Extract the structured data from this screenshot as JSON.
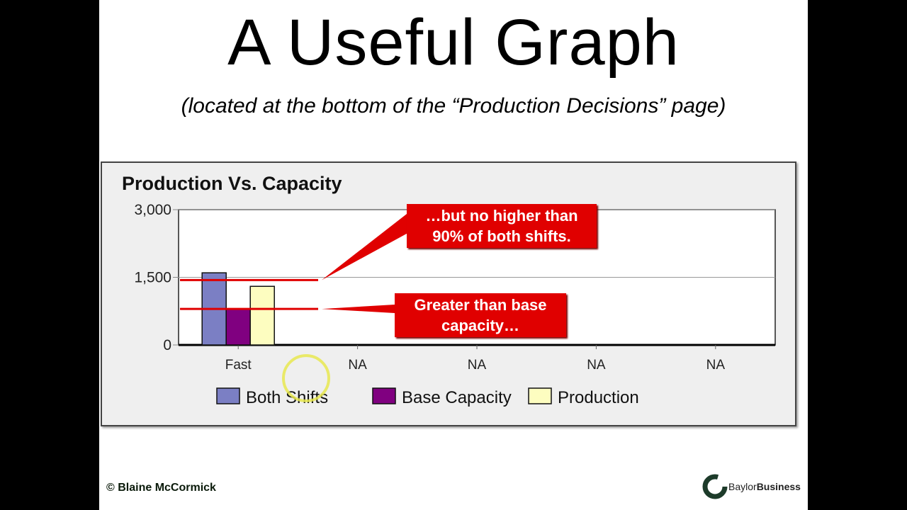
{
  "slide": {
    "title": "A Useful Graph",
    "subtitle": "(located at the bottom of the “Production Decisions” page)",
    "footer": "© Blaine McCormick",
    "logo_text_light": "Baylor",
    "logo_text_bold": "Business"
  },
  "callouts": {
    "upper": "…but no higher than 90% of both shifts.",
    "lower": "Greater than base capacity…"
  },
  "chart_data": {
    "type": "bar",
    "title": "Production Vs. Capacity",
    "categories": [
      "Fast",
      "NA",
      "NA",
      "NA",
      "NA"
    ],
    "series": [
      {
        "name": "Both Shifts",
        "values": [
          1600,
          null,
          null,
          null,
          null
        ],
        "color": "#7b7fc4"
      },
      {
        "name": "Base Capacity",
        "values": [
          800,
          null,
          null,
          null,
          null
        ],
        "color": "#800080"
      },
      {
        "name": "Production",
        "values": [
          1300,
          null,
          null,
          null,
          null
        ],
        "color": "#fdfdc0"
      }
    ],
    "ylim": [
      0,
      3000
    ],
    "yticks": [
      "0",
      "1,500",
      "3,000"
    ],
    "ytick_values": [
      0,
      1500,
      3000
    ],
    "reference_lines": [
      1440,
      800
    ],
    "reference_color": "#e00000",
    "grid": true,
    "legend": "bottom"
  }
}
